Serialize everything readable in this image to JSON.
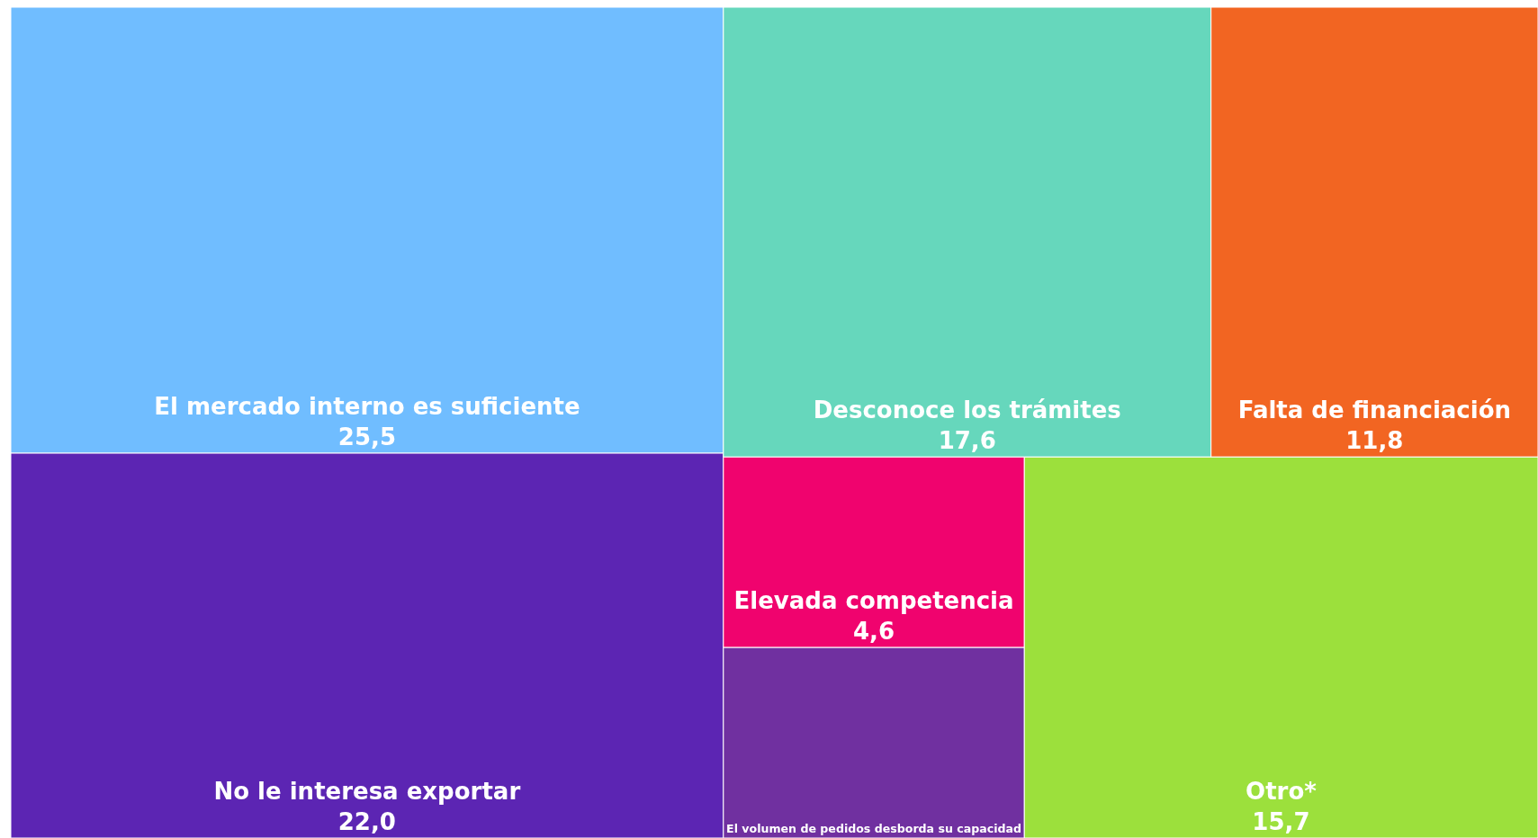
{
  "chart_data": {
    "type": "other",
    "categories": [
      "El mercado interno es suficiente",
      "No le interesa exportar",
      "Desconoce los trámites",
      "Falta de financiación",
      "Elevada competencia",
      "El volumen de pedidos desborda su capacidad",
      "Otro*"
    ],
    "values": [
      25.5,
      22.0,
      17.6,
      11.8,
      4.6,
      null,
      15.7
    ],
    "value_labels": [
      "25,5",
      "22,0",
      "17,6",
      "11,8",
      "4,6",
      null,
      "15,7"
    ],
    "colors": [
      "#70bdff",
      "#5c25b3",
      "#66d7bc",
      "#f26522",
      "#f0036e",
      "#7030a0",
      "#9ce03c"
    ]
  }
}
